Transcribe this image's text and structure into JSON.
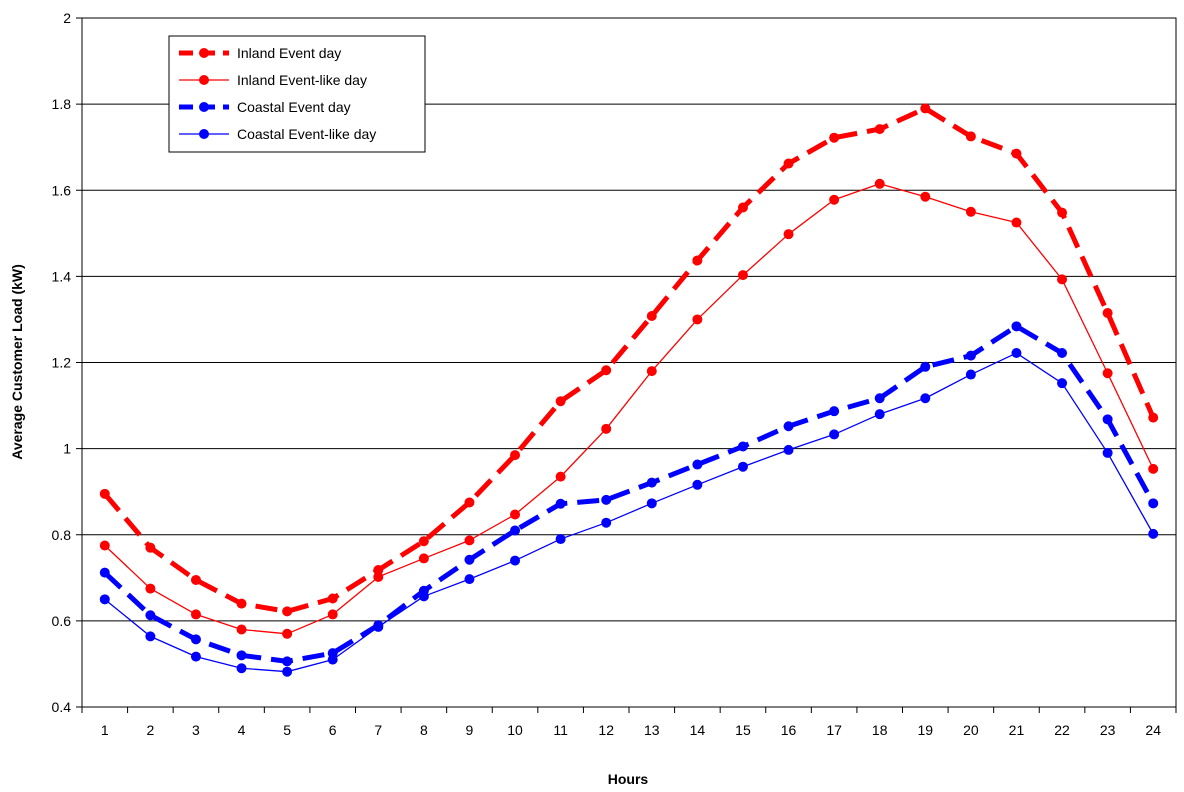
{
  "chart_data": {
    "type": "line",
    "title": "",
    "xlabel": "Hours",
    "ylabel": "Average Customer Load (kW)",
    "x": [
      1,
      2,
      3,
      4,
      5,
      6,
      7,
      8,
      9,
      10,
      11,
      12,
      13,
      14,
      15,
      16,
      17,
      18,
      19,
      20,
      21,
      22,
      23,
      24
    ],
    "ylim": [
      0.4,
      2.0
    ],
    "yticks": [
      0.4,
      0.6,
      0.8,
      1.0,
      1.2,
      1.4,
      1.6,
      1.8,
      2.0
    ],
    "ytick_labels": [
      "0.4",
      "0.6",
      "0.8",
      "1",
      "1.2",
      "1.4",
      "1.6",
      "1.8",
      "2"
    ],
    "grid": "horizontal",
    "legend_position": "top-left",
    "series": [
      {
        "name": "Inland Event day",
        "color": "#ff0000",
        "style": "dashed-thick",
        "values": [
          0.895,
          0.77,
          0.695,
          0.64,
          0.622,
          0.652,
          0.718,
          0.785,
          0.875,
          0.985,
          1.11,
          1.182,
          1.308,
          1.437,
          1.56,
          1.662,
          1.722,
          1.742,
          1.79,
          1.725,
          1.685,
          1.548,
          1.315,
          1.072
        ]
      },
      {
        "name": "Inland Event-like day",
        "color": "#ff0000",
        "style": "solid-thin",
        "values": [
          0.775,
          0.675,
          0.615,
          0.58,
          0.57,
          0.615,
          0.702,
          0.745,
          0.787,
          0.847,
          0.935,
          1.046,
          1.18,
          1.3,
          1.403,
          1.498,
          1.578,
          1.615,
          1.585,
          1.55,
          1.525,
          1.393,
          1.175,
          0.953
        ]
      },
      {
        "name": "Coastal Event day",
        "color": "#0000ff",
        "style": "dashed-thick",
        "values": [
          0.712,
          0.613,
          0.557,
          0.52,
          0.506,
          0.525,
          0.59,
          0.67,
          0.742,
          0.81,
          0.872,
          0.881,
          0.921,
          0.963,
          1.005,
          1.052,
          1.087,
          1.117,
          1.19,
          1.216,
          1.284,
          1.222,
          1.068,
          0.873
        ]
      },
      {
        "name": "Coastal Event-like day",
        "color": "#0000ff",
        "style": "solid-thin",
        "values": [
          0.65,
          0.564,
          0.517,
          0.49,
          0.482,
          0.51,
          0.586,
          0.657,
          0.697,
          0.74,
          0.79,
          0.828,
          0.873,
          0.916,
          0.958,
          0.997,
          1.033,
          1.08,
          1.117,
          1.172,
          1.222,
          1.152,
          0.99,
          0.802
        ]
      }
    ]
  }
}
